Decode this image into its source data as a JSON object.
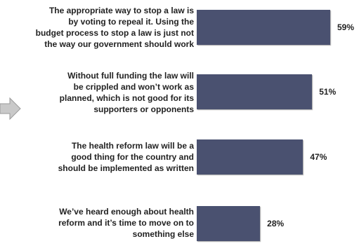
{
  "chart_data": {
    "type": "bar",
    "orientation": "horizontal",
    "categories": [
      "The appropriate way to stop a law is by voting to repeal it. Using the budget process to stop a law is just not the way our government should work",
      "Without full funding the law will be crippled and won’t work as planned, which is not good for its supporters or opponents",
      "The health reform law will be a good thing for the country and should be implemented as written",
      "We’ve heard enough about health reform and it’s time to move on to something else"
    ],
    "category_lines": [
      [
        "The appropriate way to stop a law is",
        "by voting to repeal it. Using the",
        "budget process to stop a law is just not",
        "the way our government should work"
      ],
      [
        "Without full funding the law will",
        "be crippled and won’t work as",
        "planned, which is not good for its",
        "supporters or opponents"
      ],
      [
        "The health reform law will be a",
        "good thing for the country and",
        "should be implemented as written"
      ],
      [
        "We’ve heard enough about health",
        "reform and it’s time to move on to",
        "something else"
      ]
    ],
    "values": [
      59,
      51,
      47,
      28
    ],
    "value_labels": [
      "59%",
      "51%",
      "47%",
      "28%"
    ],
    "title": "",
    "xlabel": "",
    "ylabel": "",
    "xlim": [
      0,
      70
    ],
    "grid": false,
    "legend": "none",
    "bar_color": "#4a5170",
    "text_color": "#222222"
  },
  "decor": {
    "arrow_icon": "right-arrow-icon",
    "arrow_fill": "#c9c9c9",
    "arrow_stroke": "#9a9a9a"
  }
}
